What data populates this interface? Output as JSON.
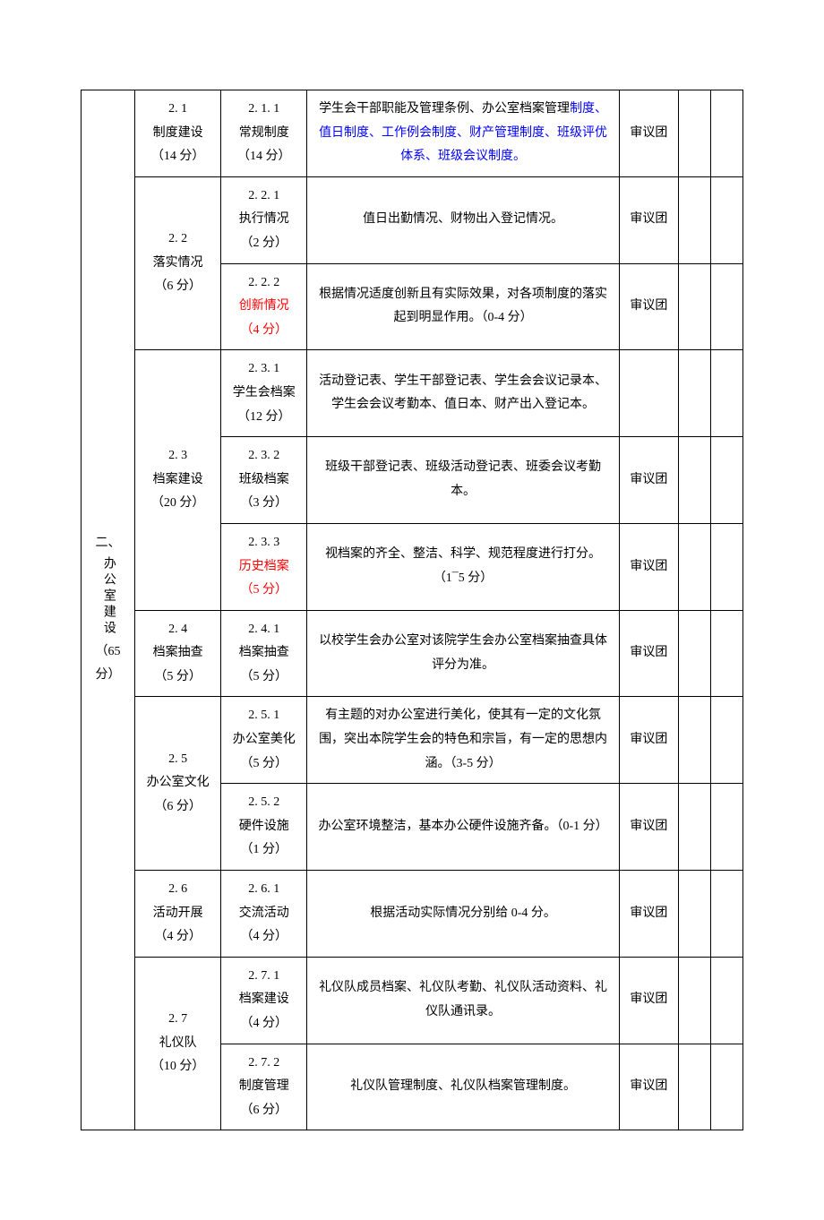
{
  "colors": {
    "text": "#000000",
    "blue": "#0000ff",
    "red": "#ff0000",
    "border": "#000000",
    "background": "#ffffff"
  },
  "typography": {
    "font_family": "SimSun",
    "font_size_pt": 10.5,
    "line_height": 1.9
  },
  "section": {
    "label_prefix": "二、",
    "label_main": "办公室建设",
    "points": "（65 分）"
  },
  "rows": [
    {
      "sub_id": "2. 1",
      "sub_name": "制度建设",
      "sub_points": "（14 分）",
      "item_id": "2. 1. 1",
      "item_name": "常规制度",
      "item_points": "（14 分）",
      "desc_prefix": "学生会干部职能及管理条例、办公室档案管理",
      "desc_blue": "制度、值日制度、工作例会制度、财产管理制度、班级评优体系、班级会议制度。",
      "reviewer": "审议团"
    },
    {
      "sub_id": "2. 2",
      "sub_name": "落实情况",
      "sub_points": "（6 分）",
      "sub_rowspan": 2,
      "item_id": "2. 2. 1",
      "item_name": "执行情况",
      "item_points": "（2 分）",
      "desc": "值日出勤情况、财物出入登记情况。",
      "reviewer": "审议团"
    },
    {
      "item_id": "2. 2. 2",
      "item_name_red": "创新情况",
      "item_points_red": "（4 分）",
      "desc": "根据情况适度创新且有实际效果，对各项制度的落实起到明显作用。（0-4 分）",
      "reviewer": "审议团"
    },
    {
      "sub_id": "2. 3",
      "sub_name": "档案建设",
      "sub_points": "（20 分）",
      "sub_rowspan": 3,
      "item_id": "2. 3. 1",
      "item_name": "学生会档案",
      "item_points": "（12 分）",
      "desc": "活动登记表、学生干部登记表、学生会会议记录本、学生会会议考勤本、值日本、财产出入登记本。",
      "reviewer": ""
    },
    {
      "item_id": "2. 3. 2",
      "item_name": "班级档案",
      "item_points": "（3 分）",
      "desc": "班级干部登记表、班级活动登记表、班委会议考勤本。",
      "reviewer": "审议团"
    },
    {
      "item_id": "2. 3. 3",
      "item_name_red": "历史档案",
      "item_points_red": "（5 分）",
      "desc": "视档案的齐全、整洁、科学、规范程度进行打分。（1¯5 分）",
      "reviewer": "审议团"
    },
    {
      "sub_id": "2. 4",
      "sub_name": "档案抽查",
      "sub_points": "（5 分）",
      "item_id": "2. 4. 1",
      "item_name": "档案抽查",
      "item_points": "（5 分）",
      "desc": "以校学生会办公室对该院学生会办公室档案抽查具体评分为准。",
      "reviewer": "审议团"
    },
    {
      "sub_id": "2. 5",
      "sub_name": "办公室文化",
      "sub_points": "（6 分）",
      "sub_rowspan": 2,
      "item_id": "2. 5. 1",
      "item_name": "办公室美化",
      "item_points": "（5 分）",
      "desc": "有主题的对办公室进行美化，使其有一定的文化氛围，突出本院学生会的特色和宗旨，有一定的思想内涵。（3-5 分）",
      "reviewer": "审议团"
    },
    {
      "item_id": "2. 5. 2",
      "item_name": "硬件设施",
      "item_points": "（1 分）",
      "desc": "办公室环境整洁，基本办公硬件设施齐备。（0-1 分）",
      "reviewer": "审议团"
    },
    {
      "sub_id": "2. 6",
      "sub_name": "活动开展",
      "sub_points": "（4 分）",
      "item_id": "2. 6. 1",
      "item_name": "交流活动",
      "item_points": "（4 分）",
      "desc": "根据活动实际情况分别给 0-4 分。",
      "reviewer": "审议团"
    },
    {
      "sub_id": "2. 7",
      "sub_name": "礼仪队",
      "sub_points": "（10 分）",
      "sub_rowspan": 2,
      "item_id": "2. 7. 1",
      "item_name": "档案建设",
      "item_points": "（4 分）",
      "desc": "礼仪队成员档案、礼仪队考勤、礼仪队活动资料、礼仪队通讯录。",
      "reviewer": "审议团"
    },
    {
      "item_id": "2. 7. 2",
      "item_name": "制度管理",
      "item_points": "（6 分）",
      "desc": "礼仪队管理制度、礼仪队档案管理制度。",
      "reviewer": "审议团"
    }
  ]
}
